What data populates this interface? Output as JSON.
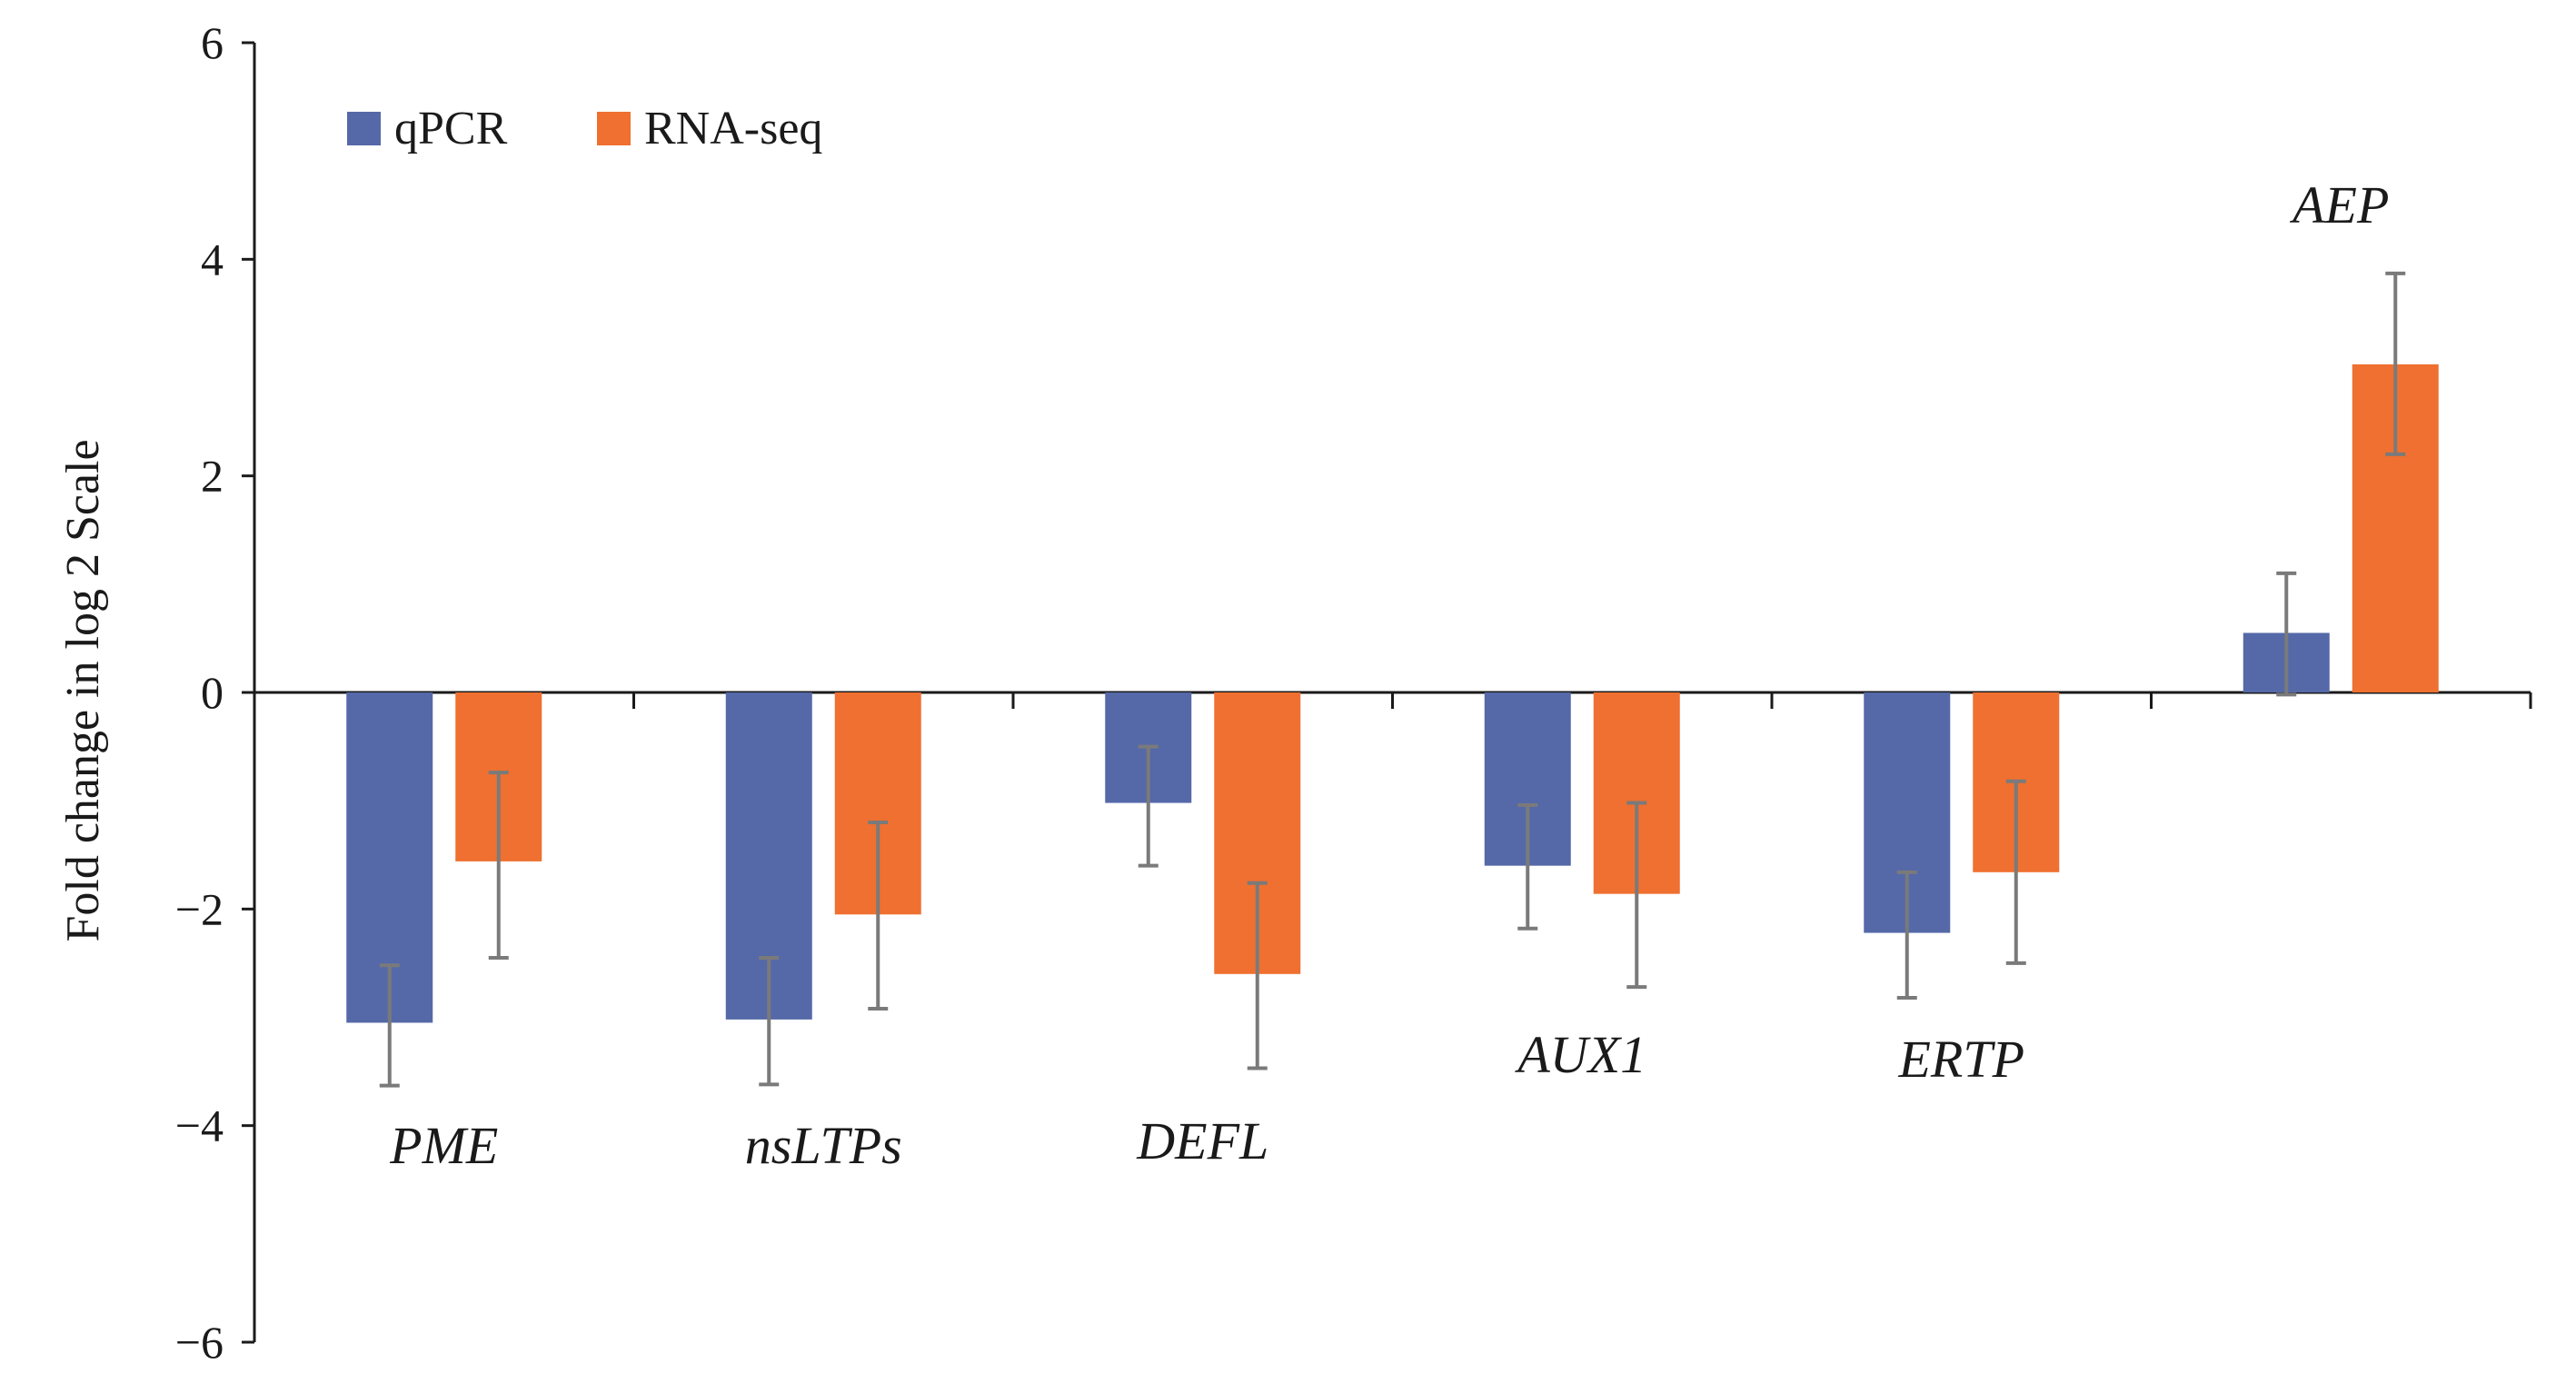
{
  "chart_data": {
    "type": "bar",
    "categories": [
      "PME",
      "nsLTPs",
      "DEFL",
      "AUX1",
      "ERTP",
      "AEP"
    ],
    "series": [
      {
        "name": "qPCR",
        "color": "#5569a8",
        "values": [
          -3.05,
          -3.02,
          -1.02,
          -1.6,
          -2.22,
          0.55
        ],
        "err_low": [
          -3.63,
          -3.62,
          -1.6,
          -2.18,
          -2.82,
          -0.02
        ],
        "err_high": [
          -2.52,
          -2.45,
          -0.5,
          -1.04,
          -1.66,
          1.1
        ]
      },
      {
        "name": "RNA-seq",
        "color": "#ef7030",
        "values": [
          -1.56,
          -2.05,
          -2.6,
          -1.86,
          -1.66,
          3.03
        ],
        "err_low": [
          -2.45,
          -2.92,
          -3.47,
          -2.72,
          -2.5,
          2.2
        ],
        "err_high": [
          -0.74,
          -1.2,
          -1.76,
          -1.02,
          -0.82,
          3.87
        ]
      }
    ],
    "ylabel": "Fold change in log 2 Scale",
    "ylim": [
      -6,
      6
    ],
    "yticks": [
      "6",
      "4",
      "2",
      "0",
      "−2",
      "−4",
      "−6"
    ],
    "legend_position": "top-left",
    "grid": false,
    "error_bar_color": "#7a7a7a"
  }
}
